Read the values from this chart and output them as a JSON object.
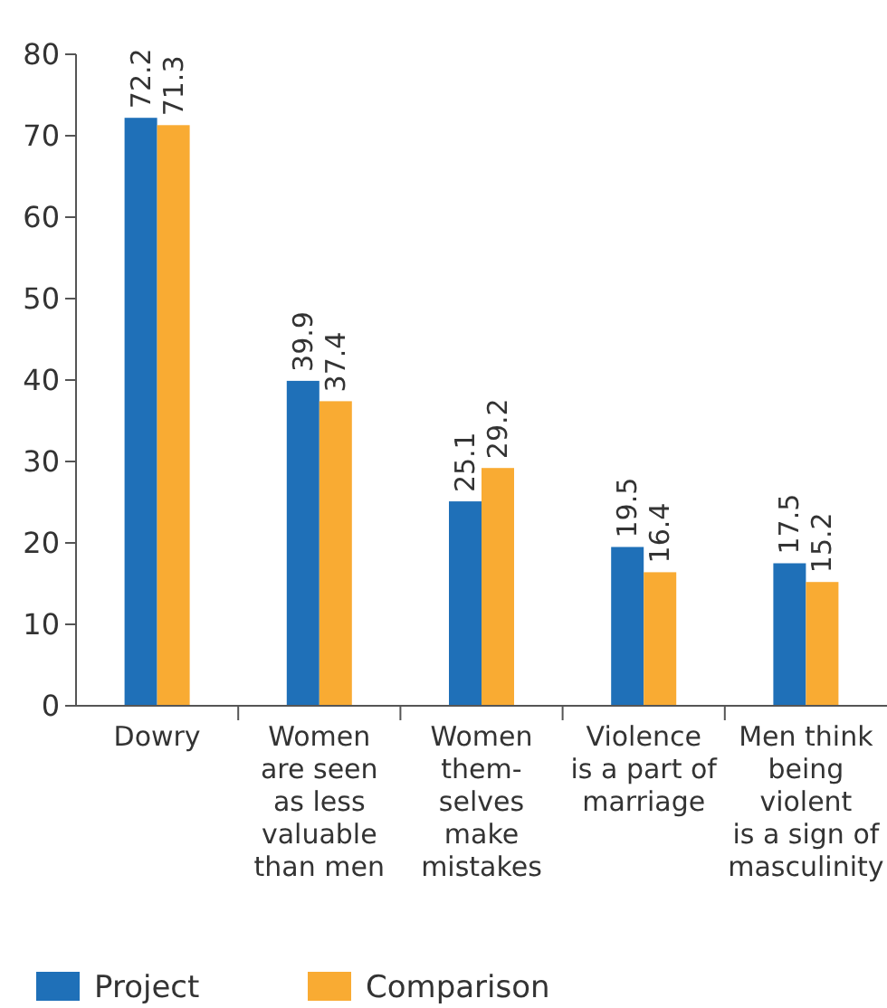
{
  "chart_data": {
    "type": "bar",
    "categories": [
      "Dowry",
      "Women\nare seen\nas less\nvaluable\nthan men",
      "Women\nthem-\nselves\nmake\nmistakes",
      "Violence\nis a part of\nmarriage",
      "Men think\nbeing\nviolent\nis a sign of\nmasculinity"
    ],
    "series": [
      {
        "name": "Project",
        "color": "#1f70b8",
        "values": [
          72.2,
          39.9,
          25.1,
          19.5,
          17.5
        ]
      },
      {
        "name": "Comparison",
        "color": "#f9ab33",
        "values": [
          71.3,
          37.4,
          29.2,
          16.4,
          15.2
        ]
      }
    ],
    "ylim": [
      0,
      80
    ],
    "yticks": [
      0,
      10,
      20,
      30,
      40,
      50,
      60,
      70,
      80
    ],
    "data_labels": true,
    "legend": "bottom",
    "grid": false
  }
}
